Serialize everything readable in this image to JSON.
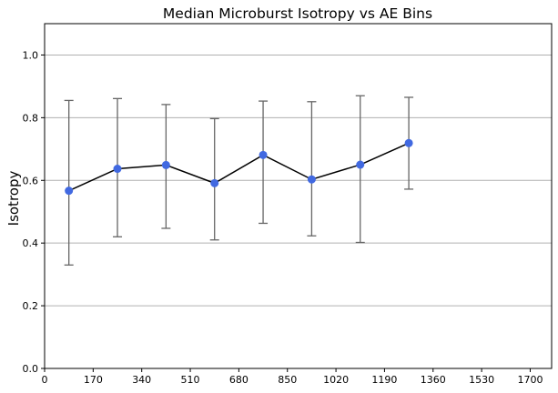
{
  "chart_data": {
    "type": "line",
    "title": "Median Microburst Isotropy vs AE Bins",
    "xlabel": "",
    "ylabel": "Isotropy",
    "xlim": [
      0,
      1775
    ],
    "ylim": [
      0.0,
      1.1
    ],
    "x_ticks": [
      0,
      170,
      340,
      510,
      680,
      850,
      1020,
      1190,
      1360,
      1530,
      1700
    ],
    "y_ticks": [
      0.0,
      0.2,
      0.4,
      0.6,
      0.8,
      1.0
    ],
    "grid": "horizontal",
    "colors": {
      "line": "#000000",
      "marker": "#4169e1",
      "errorbar": "#666666",
      "grid": "#b0b0b0"
    },
    "series": [
      {
        "x": [
          85,
          255,
          425,
          595,
          765,
          935,
          1105,
          1275
        ],
        "y": [
          0.567,
          0.637,
          0.649,
          0.591,
          0.681,
          0.603,
          0.65,
          0.719
        ],
        "y_lower": [
          0.33,
          0.42,
          0.447,
          0.41,
          0.463,
          0.423,
          0.402,
          0.572
        ],
        "y_upper": [
          0.855,
          0.861,
          0.842,
          0.797,
          0.853,
          0.851,
          0.87,
          0.865
        ]
      }
    ]
  }
}
